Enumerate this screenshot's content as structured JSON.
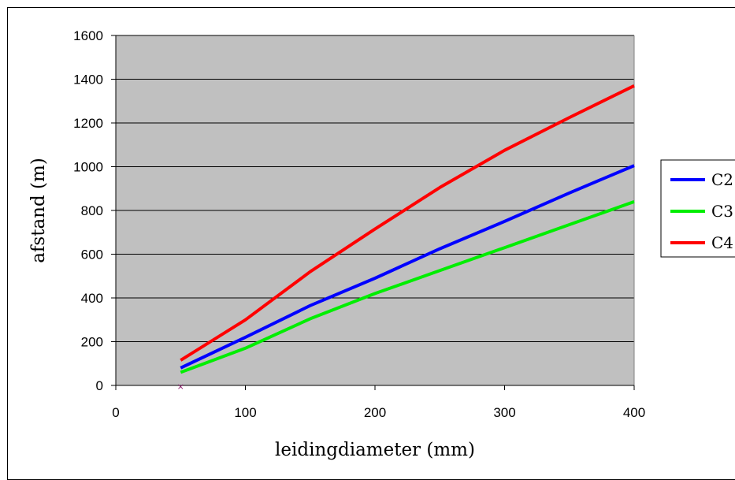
{
  "chart_data": {
    "type": "line",
    "title": "",
    "xlabel": "leidingdiameter (mm)",
    "ylabel": "afstand (m)",
    "xlim": [
      0,
      400
    ],
    "ylim": [
      0,
      1600
    ],
    "xticks": [
      0,
      100,
      200,
      300,
      400
    ],
    "yticks": [
      0,
      200,
      400,
      600,
      800,
      1000,
      1200,
      1400,
      1600
    ],
    "grid": "horizontal",
    "plot_background": "#c0c0c0",
    "legend_position": "right",
    "series": [
      {
        "name": "C2",
        "color": "#0000ff",
        "x": [
          50,
          100,
          150,
          200,
          250,
          300,
          350,
          400
        ],
        "y": [
          80,
          220,
          365,
          490,
          625,
          750,
          880,
          1005
        ]
      },
      {
        "name": "C3",
        "color": "#00ee00",
        "x": [
          50,
          100,
          150,
          200,
          250,
          300,
          350,
          400
        ],
        "y": [
          60,
          170,
          305,
          420,
          525,
          630,
          735,
          840
        ]
      },
      {
        "name": "C4",
        "color": "#ff0000",
        "x": [
          50,
          100,
          150,
          200,
          250,
          300,
          350,
          400
        ],
        "y": [
          115,
          300,
          520,
          715,
          905,
          1075,
          1225,
          1370
        ]
      }
    ]
  }
}
